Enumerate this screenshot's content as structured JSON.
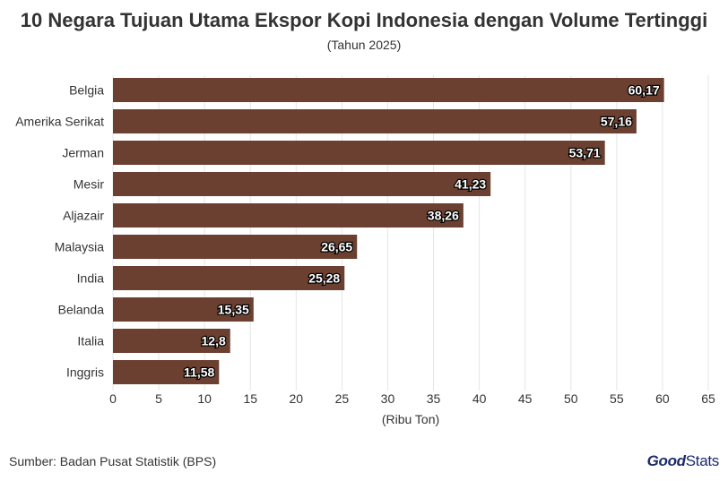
{
  "header": {
    "title": "10 Negara Tujuan Utama Ekspor Kopi Indonesia dengan Volume Tertinggi",
    "subtitle": "(Tahun 2025)"
  },
  "footer": {
    "source": "Sumber: Badan Pusat Statistik (BPS)",
    "logo_part1": "Good",
    "logo_part2": "Stats"
  },
  "colors": {
    "bar": "#6b4030",
    "grid": "#e6e6e6",
    "text": "#333333",
    "logo": "#1b2a6b"
  },
  "chart_data": {
    "type": "bar",
    "orientation": "horizontal",
    "categories": [
      "Belgia",
      "Amerika Serikat",
      "Jerman",
      "Mesir",
      "Aljazair",
      "Malaysia",
      "India",
      "Belanda",
      "Italia",
      "Inggris"
    ],
    "values": [
      60.17,
      57.16,
      53.71,
      41.23,
      38.26,
      26.65,
      25.28,
      15.35,
      12.8,
      11.58
    ],
    "value_labels": [
      "60,17",
      "57,16",
      "53,71",
      "41,23",
      "38,26",
      "26,65",
      "25,28",
      "15,35",
      "12,8",
      "11,58"
    ],
    "title": "10 Negara Tujuan Utama Ekspor Kopi Indonesia dengan Volume Tertinggi",
    "subtitle": "(Tahun 2025)",
    "xlabel": "(Ribu Ton)",
    "ylabel": "",
    "xlim": [
      0,
      65
    ],
    "xticks": [
      0,
      5,
      10,
      15,
      20,
      25,
      30,
      35,
      40,
      45,
      50,
      55,
      60,
      65
    ],
    "grid": true
  }
}
